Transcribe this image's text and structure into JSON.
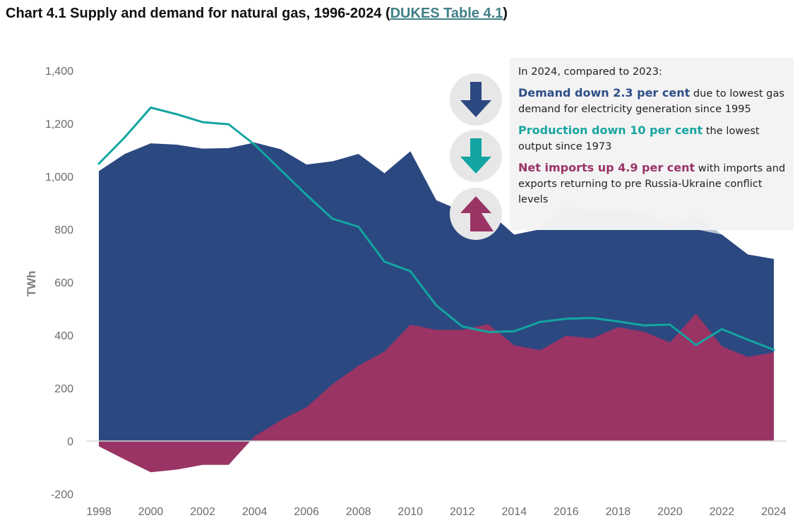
{
  "title": {
    "text_before": "Chart 4.1 Supply and demand for natural gas, 1996-2024 (",
    "link_text": "DUKES Table 4.1",
    "text_after": ")"
  },
  "colors": {
    "demand": "#2b4880",
    "production": "#13a5a1",
    "net_imports": "#993465",
    "demand_light": "#b9c4d3",
    "axis_text": "#6b6b6b"
  },
  "icons": [
    "arrow-down-icon",
    "arrow-down-icon",
    "arrow-up-icon"
  ],
  "annotation": {
    "intro": "In 2024, compared to 2023:",
    "points": [
      {
        "highlight": "Demand down 2.3 per cent",
        "rest": " due to lowest gas demand for electricity generation since 1995"
      },
      {
        "highlight": "Production down 10 per cent",
        "rest": " the lowest output since 1973"
      },
      {
        "highlight": "Net imports up 4.9 per cent",
        "rest": " with imports and exports returning to pre Russia-Ukraine conflict levels"
      }
    ]
  },
  "chart_data": {
    "type": "area",
    "ylabel": "TWh",
    "xlabel": "",
    "ylim": [
      -200,
      1400
    ],
    "xlim": [
      1998,
      2024
    ],
    "yticks": [
      -200,
      0,
      200,
      400,
      600,
      800,
      1000,
      1200,
      1400
    ],
    "xticks": [
      1998,
      2000,
      2002,
      2004,
      2006,
      2008,
      2010,
      2012,
      2014,
      2016,
      2018,
      2020,
      2022,
      2024
    ],
    "grid": false,
    "legend": "none",
    "x": [
      1998,
      1999,
      2000,
      2001,
      2002,
      2003,
      2004,
      2005,
      2006,
      2007,
      2008,
      2009,
      2010,
      2011,
      2012,
      2013,
      2014,
      2015,
      2016,
      2017,
      2018,
      2019,
      2020,
      2021,
      2022,
      2023,
      2024
    ],
    "series": [
      {
        "type": "area",
        "values": [
          1020,
          1085,
          1125,
          1120,
          1105,
          1107,
          1128,
          1103,
          1045,
          1057,
          1085,
          1012,
          1095,
          910,
          868,
          868,
          780,
          800,
          800,
          800,
          800,
          800,
          800,
          800,
          780,
          705,
          688
        ]
      },
      {
        "type": "area",
        "values": [
          null,
          null,
          null,
          null,
          null,
          null,
          null,
          null,
          null,
          null,
          null,
          null,
          null,
          null,
          null,
          null,
          null,
          800,
          888,
          870,
          875,
          865,
          815,
          855,
          780,
          705,
          688
        ]
      },
      {
        "type": "area",
        "values": [
          -20,
          -70,
          -118,
          -108,
          -90,
          -90,
          18,
          78,
          128,
          215,
          285,
          338,
          440,
          420,
          420,
          442,
          362,
          343,
          398,
          388,
          430,
          413,
          373,
          482,
          358,
          318,
          335
        ]
      },
      {
        "type": "line",
        "values": [
          1048,
          1148,
          1260,
          1235,
          1205,
          1197,
          1120,
          1025,
          930,
          840,
          810,
          678,
          642,
          512,
          433,
          412,
          415,
          450,
          462,
          465,
          452,
          437,
          440,
          363,
          423,
          383,
          345
        ]
      }
    ]
  }
}
